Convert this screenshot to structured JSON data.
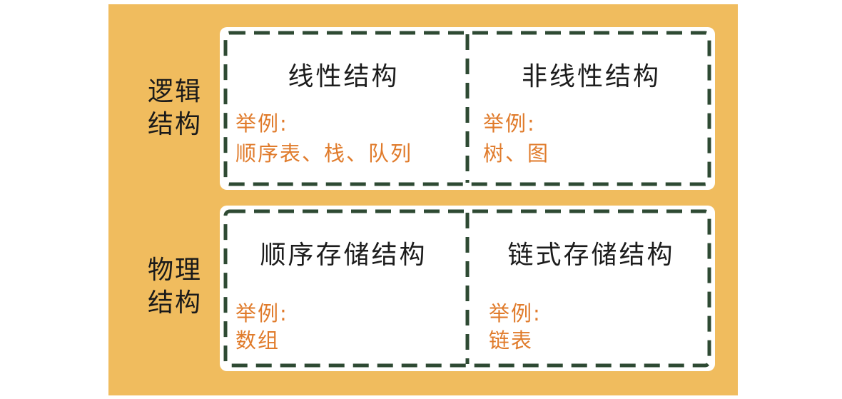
{
  "logical": {
    "label_line1": "逻辑",
    "label_line2": "结构",
    "left": {
      "title": "线性结构",
      "example_label": "举例:",
      "example_value": "顺序表、栈、队列"
    },
    "right": {
      "title": "非线性结构",
      "example_label": "举例:",
      "example_value": "树、图"
    }
  },
  "physical": {
    "label_line1": "物理",
    "label_line2": "结构",
    "left": {
      "title": "顺序存储结构",
      "example_label": "举例:",
      "example_value": "数组"
    },
    "right": {
      "title": "链式存储结构",
      "example_label": "举例:",
      "example_value": "链表"
    }
  },
  "colors": {
    "background": "#f0bc5e",
    "panel": "#ffffff",
    "dash": "#2e4a33",
    "title_text": "#1c1c1c",
    "example_text": "#e07b2b"
  }
}
